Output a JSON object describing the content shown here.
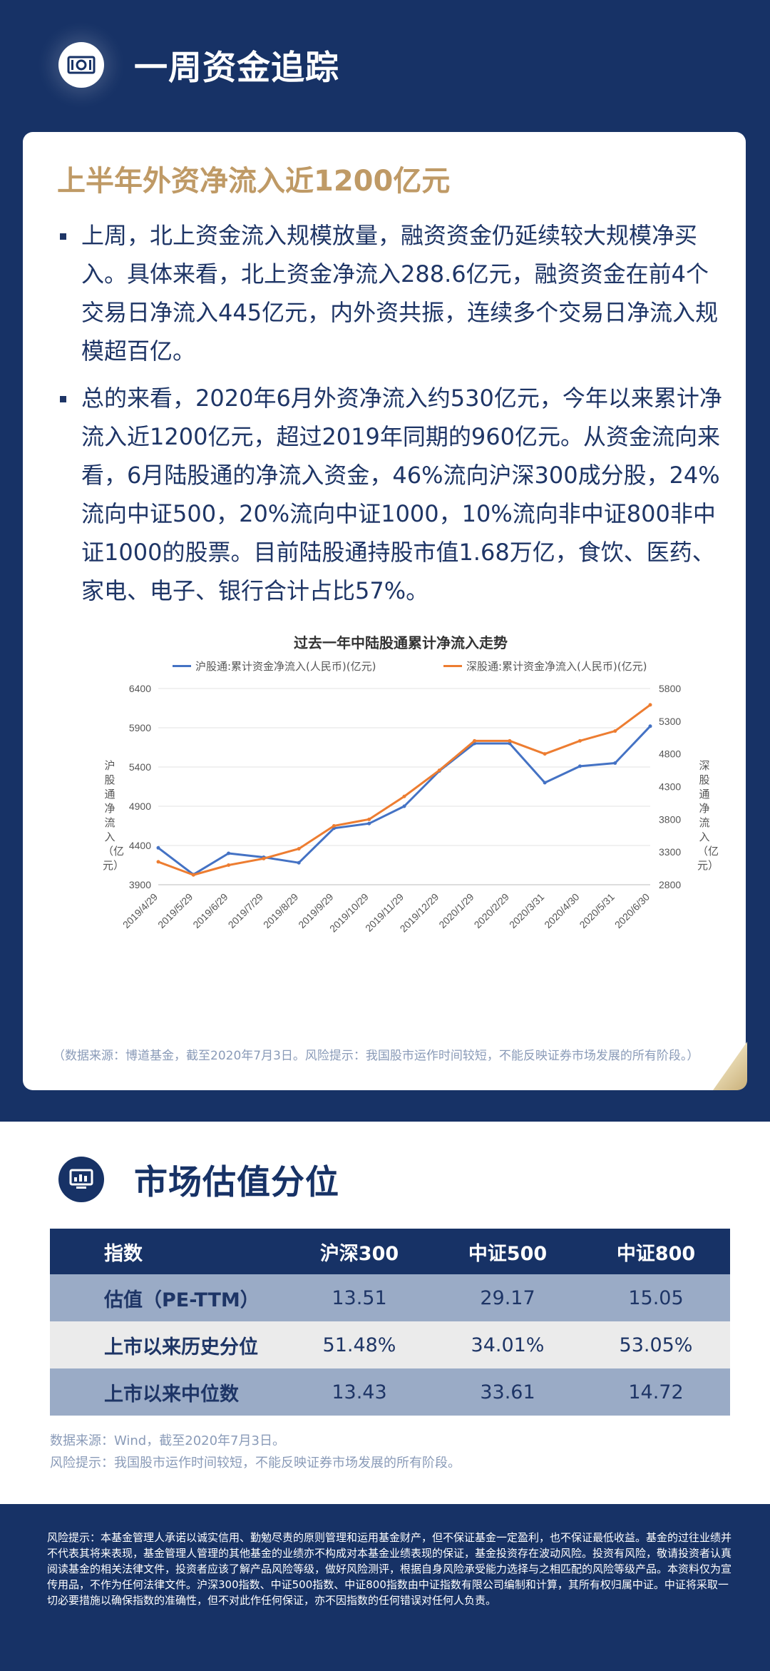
{
  "section1": {
    "title": "一周资金追踪",
    "card_title": "上半年外资净流入近1200亿元",
    "paragraphs": [
      "上周，北上资金流入规模放量，融资资金仍延续较大规模净买入。具体来看，北上资金净流入288.6亿元，融资资金在前4个交易日净流入445亿元，内外资共振，连续多个交易日净流入规模超百亿。",
      "总的来看，2020年6月外资净流入约530亿元，今年以来累计净流入近1200亿元，超过2019年同期的960亿元。从资金流向来看，6月陆股通的净流入资金，46%流向沪深300成分股，24%流向中证500，20%流向中证1000，10%流向非中证800非中证1000的股票。目前陆股通持股市值1.68万亿，食饮、医药、家电、电子、银行合计占比57%。"
    ],
    "footnote": "（数据来源：博道基金，截至2020年7月3日。风险提示：我国股市运作时间较短，不能反映证券市场发展的所有阶段。）"
  },
  "chart_data": {
    "type": "line",
    "title": "过去一年中陆股通累计净流入走势",
    "xlabel": "",
    "ylabel": "沪股通净流入（亿元）",
    "ylabel_right": "深股通净流入（亿元）",
    "x": [
      "2019/4/29",
      "2019/5/29",
      "2019/6/29",
      "2019/7/29",
      "2019/8/29",
      "2019/9/29",
      "2019/10/29",
      "2019/11/29",
      "2019/12/29",
      "2020/1/29",
      "2020/2/29",
      "2020/3/31",
      "2020/4/30",
      "2020/5/31",
      "2020/6/30"
    ],
    "ylim": [
      3900,
      6400
    ],
    "yticks": [
      "6400",
      "5900",
      "5400",
      "4900",
      "4400",
      "3900"
    ],
    "ylim_right": [
      2800,
      5800
    ],
    "yticks_right": [
      "5800",
      "5300",
      "4800",
      "4300",
      "3800",
      "3300",
      "2800"
    ],
    "grid": true,
    "legend": "top",
    "series": [
      {
        "name": "沪股通:累计资金净流入(人民币)(亿元)",
        "axis": "left",
        "color": "#4472c4",
        "values": [
          4370,
          4030,
          4300,
          4250,
          4180,
          4620,
          4680,
          4900,
          5350,
          5700,
          5700,
          5200,
          5410,
          5450,
          5920
        ]
      },
      {
        "name": "深股通:累计资金净流入(人民币)(亿元)",
        "axis": "right",
        "color": "#ed7d31",
        "values": [
          3150,
          2950,
          3100,
          3200,
          3350,
          3700,
          3800,
          4150,
          4550,
          5000,
          5000,
          4800,
          5000,
          5150,
          5550
        ]
      }
    ]
  },
  "section2": {
    "title": "市场估值分位",
    "table": {
      "headers": [
        "指数",
        "沪深300",
        "中证500",
        "中证800"
      ],
      "rows": [
        [
          "估值（PE-TTM）",
          "13.51",
          "29.17",
          "15.05"
        ],
        [
          "上市以来历史分位",
          "51.48%",
          "34.01%",
          "53.05%"
        ],
        [
          "上市以来中位数",
          "13.43",
          "33.61",
          "14.72"
        ]
      ]
    },
    "source": "数据来源：Wind，截至2020年7月3日。",
    "risk": "风险提示：我国股市运作时间较短，不能反映证券市场发展的所有阶段。"
  },
  "footer": {
    "text": "风险提示：本基金管理人承诺以诚实信用、勤勉尽责的原则管理和运用基金财产，但不保证基金一定盈利，也不保证最低收益。基金的过往业绩并不代表其将来表现，基金管理人管理的其他基金的业绩亦不构成对本基金业绩表现的保证，基金投资存在波动风险。投资有风险，敬请投资者认真阅读基金的相关法律文件，投资者应该了解产品风险等级，做好风险测评，根据自身风险承受能力选择与之相匹配的风险等级产品。本资料仅为宣传用品，不作为任何法律文件。沪深300指数、中证500指数、中证800指数由中证指数有限公司编制和计算，其所有权归属中证。中证将采取一切必要措施以确保指数的准确性，但不对此作任何保证，亦不因指数的任何错误对任何人负责。"
  },
  "colors": {
    "navy": "#173266",
    "gold": "#bf9a66",
    "row_blue": "#9aabc6",
    "row_gray": "#ebebeb"
  },
  "icons": [
    "money-icon",
    "monitor-icon"
  ]
}
